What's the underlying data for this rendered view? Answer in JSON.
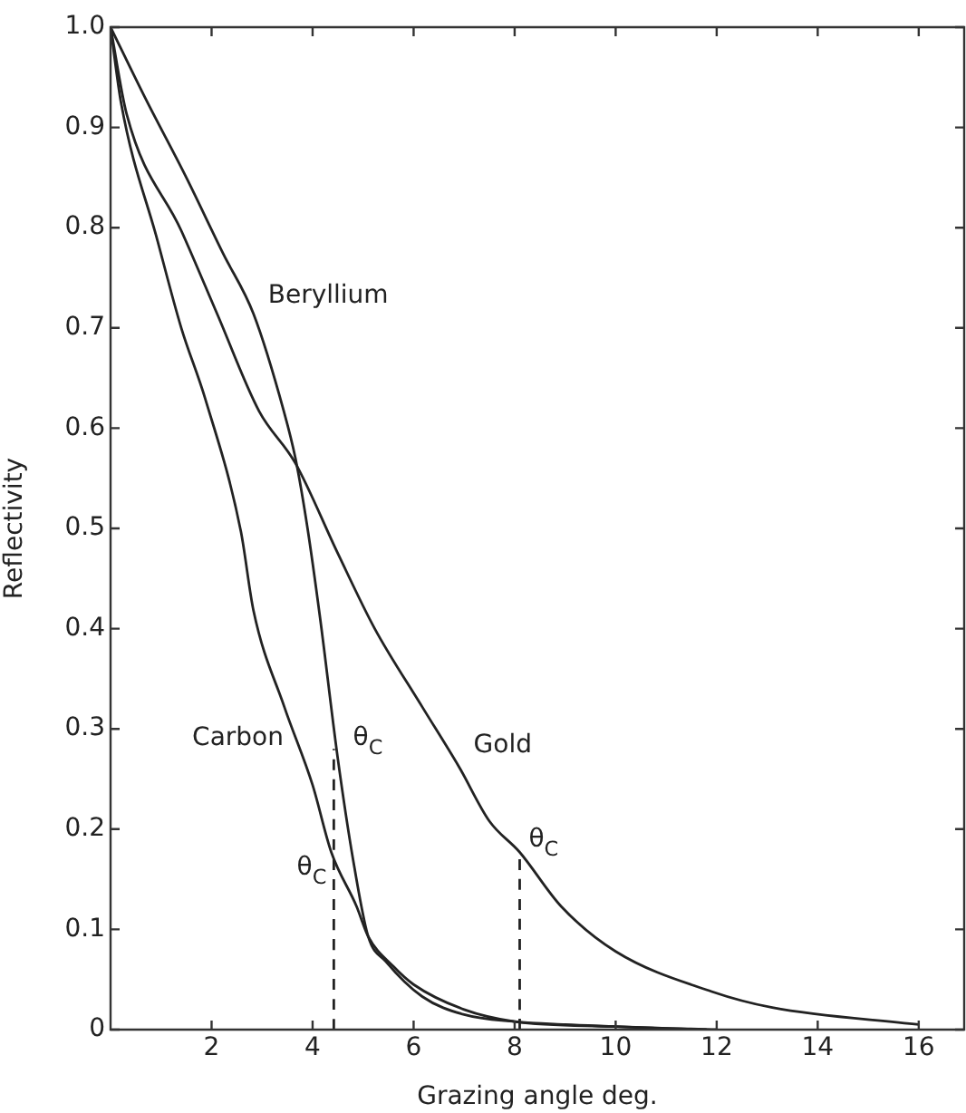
{
  "chart_data": {
    "type": "line",
    "xlabel": "Grazing angle deg.",
    "ylabel": "Reflectivity",
    "xlim": [
      0,
      16.9
    ],
    "xticks": [
      2,
      4,
      6,
      8,
      10,
      12,
      14,
      16
    ],
    "ylim": [
      0,
      1
    ],
    "yticks": [
      0,
      0.1,
      0.2,
      0.3,
      0.4,
      0.5,
      0.6,
      0.7,
      0.8,
      0.9,
      {
        "value": 1,
        "label": "1.0"
      }
    ],
    "grid": false,
    "legend": false,
    "marker": "none",
    "series": [
      {
        "name": "Beryllium",
        "color": "#222222",
        "x": [
          0,
          0.68,
          1.5,
          2.23,
          2.83,
          3.43,
          3.66,
          3.9,
          4.15,
          4.5,
          4.8,
          5.1,
          5.45,
          6.17,
          7,
          8,
          9,
          10,
          11,
          11.8
        ],
        "values": [
          1,
          0.93,
          0.85,
          0.774,
          0.714,
          0.617,
          0.57,
          0.5,
          0.41,
          0.27,
          0.17,
          0.093,
          0.068,
          0.033,
          0.015,
          0.008,
          0.005,
          0.003,
          0.001,
          0
        ]
      },
      {
        "name": "Gold",
        "color": "#222222",
        "x": [
          0,
          0.32,
          1.4,
          2.11,
          2.94,
          3.66,
          4.5,
          5.23,
          6.17,
          6.9,
          7.5,
          8.1,
          8.92,
          10,
          11.9,
          13.1,
          16
        ],
        "values": [
          1,
          0.913,
          0.797,
          0.714,
          0.617,
          0.565,
          0.475,
          0.4,
          0.322,
          0.262,
          0.208,
          0.177,
          0.123,
          0.078,
          0.038,
          0.022,
          0.005
        ]
      },
      {
        "name": "Carbon",
        "color": "#222222",
        "x": [
          0,
          0.21,
          0.93,
          1.4,
          1.87,
          2.58,
          2.83,
          3.44,
          4,
          4.37,
          4.87,
          5.1,
          5.6,
          6,
          7,
          8,
          10,
          12
        ],
        "values": [
          1,
          0.924,
          0.787,
          0.7,
          0.63,
          0.497,
          0.418,
          0.322,
          0.244,
          0.177,
          0.123,
          0.093,
          0.063,
          0.045,
          0.02,
          0.008,
          0.003,
          0
        ]
      },
      {
        "color": "#222222",
        "line_style": "dashed",
        "x": [
          4.42,
          4.42
        ],
        "values": [
          0,
          0.28
        ]
      },
      {
        "color": "#222222",
        "line_style": "dashed",
        "x": [
          8.1,
          8.1
        ],
        "values": [
          0,
          0.17
        ]
      }
    ],
    "annotations": [
      {
        "text": "θ$_{C}$",
        "x": 4.42,
        "y": 0.18
      },
      {
        "text": "θ$_{C}$",
        "x": 4.55,
        "y": 0.28
      },
      {
        "text": "θ$_{C}$",
        "x": 8.1,
        "y": 0.17
      }
    ]
  }
}
